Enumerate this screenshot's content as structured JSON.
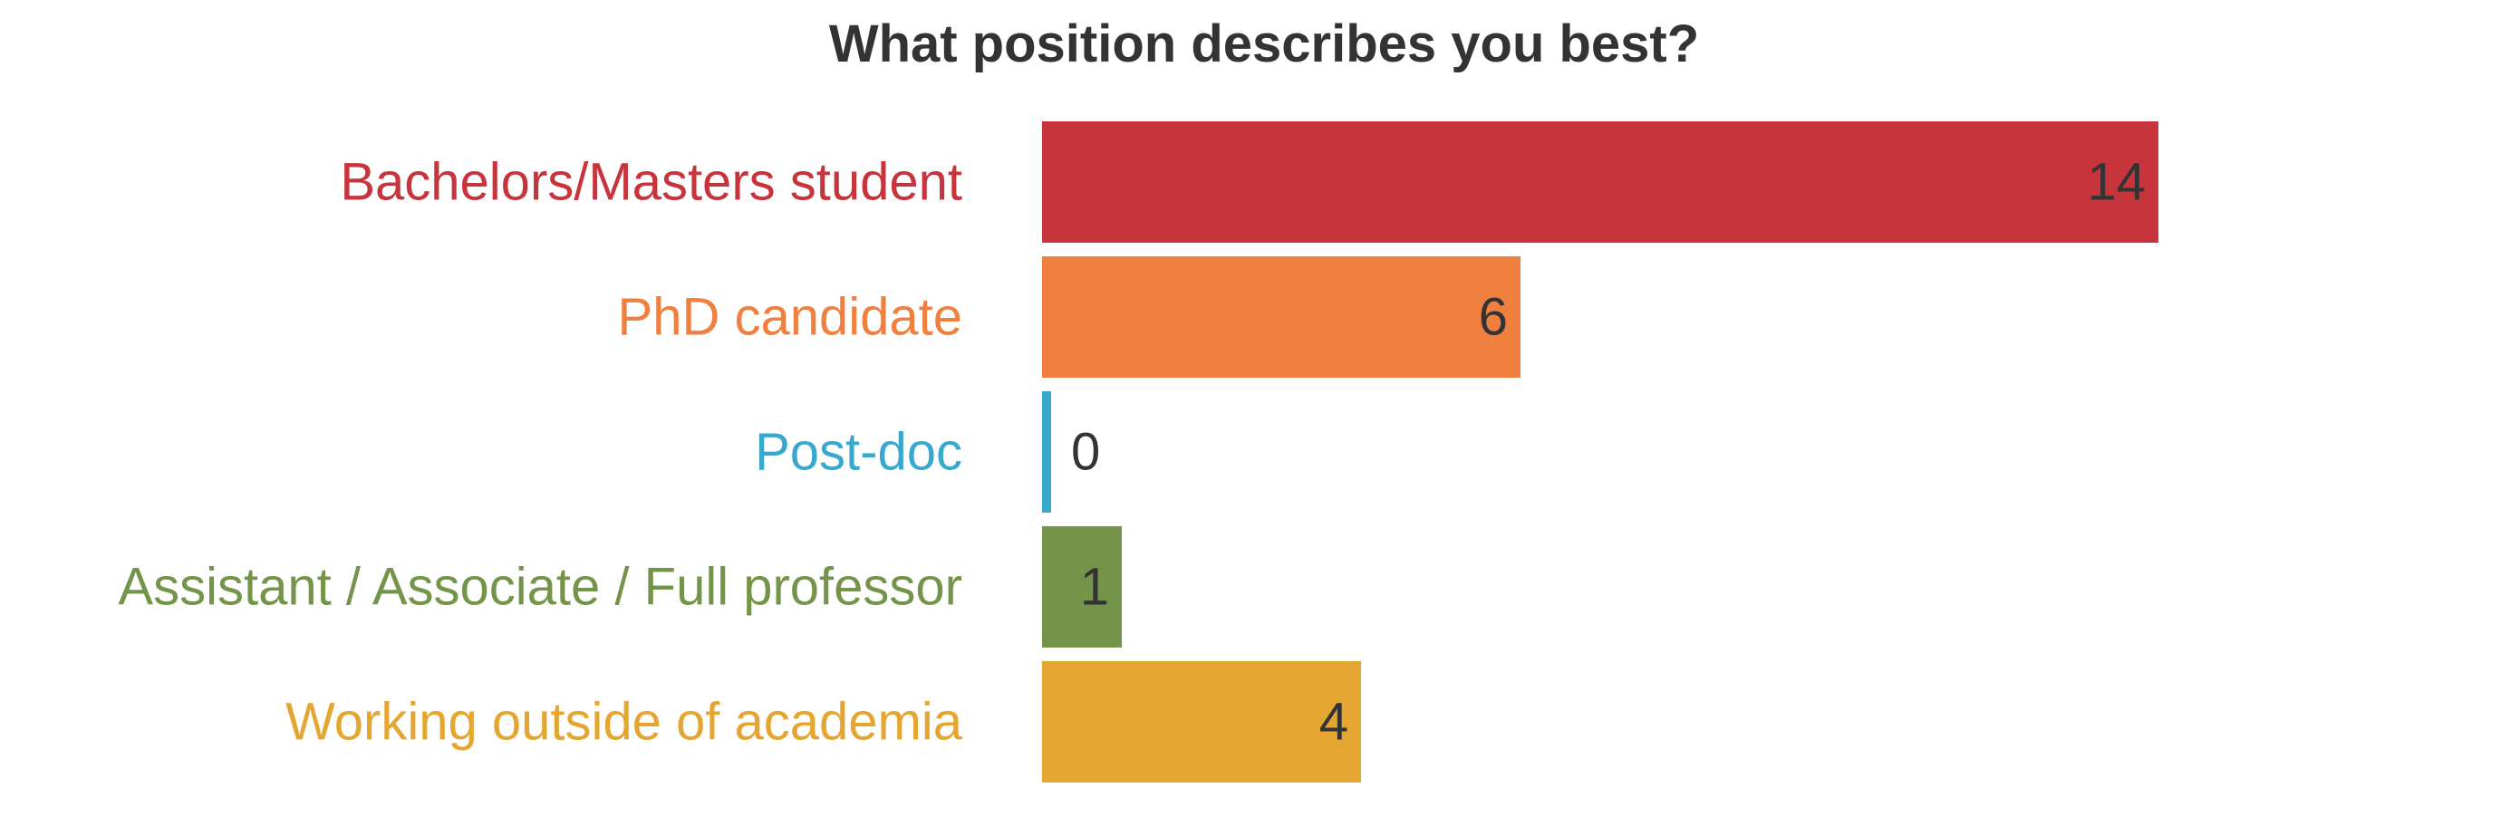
{
  "chart_data": {
    "type": "bar",
    "orientation": "horizontal",
    "title": "What position describes you best?",
    "xlabel": "",
    "ylabel": "",
    "xlim": [
      0,
      14
    ],
    "grid": false,
    "legend": "none",
    "categories": [
      "Bachelors/Masters student",
      "PhD candidate",
      "Post-doc",
      "Assistant / Associate / Full professor",
      "Working outside of academia"
    ],
    "values": [
      14,
      6,
      0,
      1,
      4
    ],
    "data_labels": [
      "14",
      "6",
      "0",
      "1",
      "4"
    ],
    "colors": [
      "#c8343c",
      "#f08040",
      "#38a8d0",
      "#74944a",
      "#e4a630"
    ],
    "label_text_color": "#333333"
  }
}
